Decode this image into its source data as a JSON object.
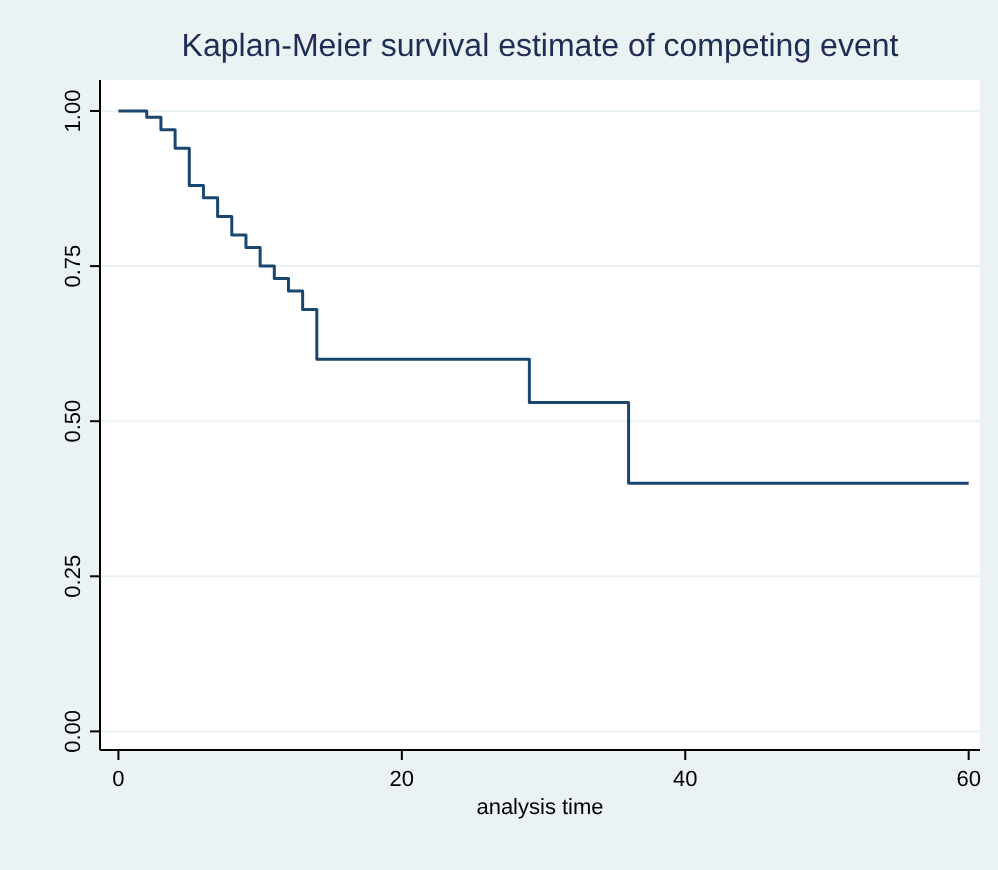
{
  "chart_data": {
    "type": "step",
    "title": "Kaplan-Meier survival estimate of competing event",
    "xlabel": "analysis time",
    "x": [
      0,
      2,
      3,
      4,
      5,
      6,
      7,
      8,
      9,
      10,
      11,
      12,
      13,
      14,
      29,
      36,
      60
    ],
    "series": [
      {
        "color": "#1a476f",
        "values": [
          1.0,
          0.99,
          0.97,
          0.94,
          0.88,
          0.86,
          0.83,
          0.8,
          0.78,
          0.75,
          0.73,
          0.71,
          0.68,
          0.6,
          0.53,
          0.4,
          0.4
        ]
      }
    ],
    "xlim": [
      -1.3,
      60.8
    ],
    "ylim": [
      -0.03,
      1.05
    ],
    "xticks": [
      0,
      20,
      40,
      60
    ],
    "yticks": [
      {
        "value": 0,
        "label": "0.00"
      },
      {
        "value": 0.25,
        "label": "0.25"
      },
      {
        "value": 0.5,
        "label": "0.50"
      },
      {
        "value": 0.75,
        "label": "0.75"
      },
      {
        "value": 1,
        "label": "1.00"
      }
    ],
    "grid": "y"
  }
}
